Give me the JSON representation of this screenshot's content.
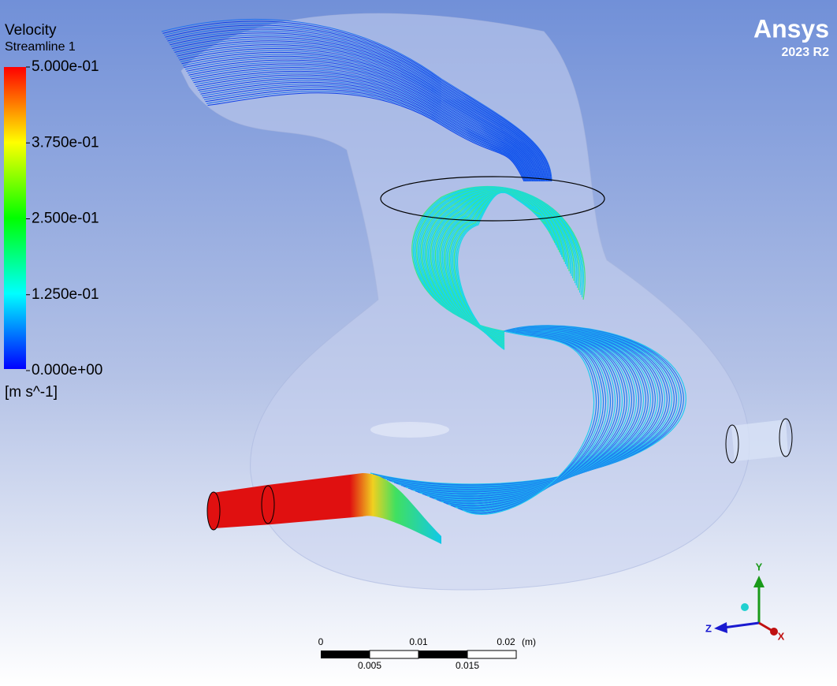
{
  "legend": {
    "title": "Velocity",
    "subtitle": "Streamline 1",
    "ticks": [
      "5.000e-01",
      "3.750e-01",
      "2.500e-01",
      "1.250e-01",
      "0.000e+00"
    ],
    "unit": "[m s^-1]"
  },
  "logo": {
    "brand": "Ansys",
    "version": "2023 R2"
  },
  "scale_bar": {
    "top_labels": [
      "0",
      "0.01",
      "0.02"
    ],
    "unit": "(m)",
    "bottom_labels": [
      "0.005",
      "0.015"
    ]
  },
  "triad": {
    "y": "Y",
    "z": "Z",
    "x": "X"
  }
}
